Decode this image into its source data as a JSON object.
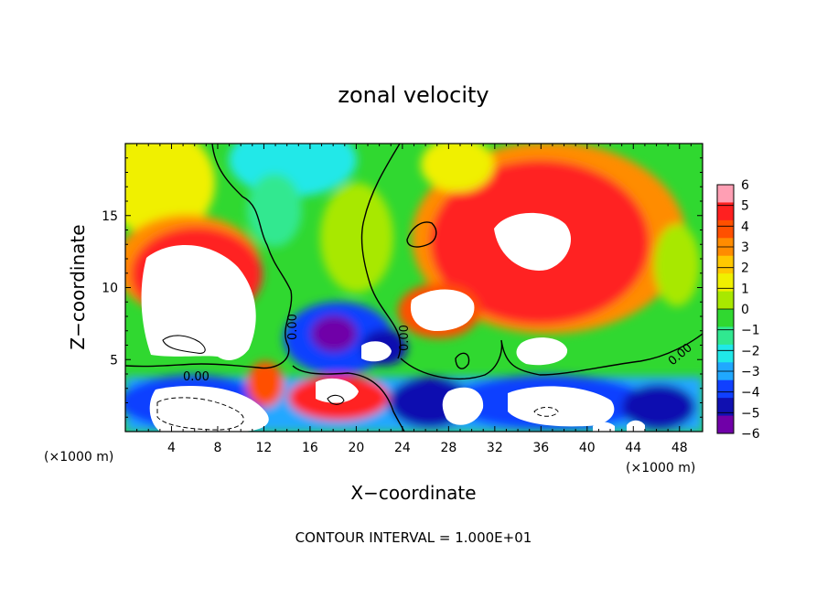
{
  "chart_data": {
    "type": "heatmap",
    "title": "zonal velocity",
    "xlabel": "X−coordinate",
    "ylabel": "Z−coordinate",
    "x_unit": "(×1000 m)",
    "z_unit": "(×1000 m)",
    "xlim": [
      0,
      50
    ],
    "ylim": [
      0,
      20
    ],
    "x_ticks": [
      "4",
      "8",
      "12",
      "16",
      "20",
      "24",
      "28",
      "32",
      "36",
      "40",
      "44",
      "48"
    ],
    "y_ticks": [
      "5",
      "10",
      "15"
    ],
    "contour_interval_label": "CONTOUR INTERVAL = 1.000E+01",
    "contour_label": "0.00",
    "colorbar": {
      "labels": [
        "6",
        "5",
        "4",
        "3",
        "2",
        "1",
        "0",
        "−1",
        "−2",
        "−3",
        "−4",
        "−5",
        "−6"
      ],
      "range": [
        -6,
        6
      ]
    },
    "colors": {
      "white": "#ffffff",
      "pink": "#ff9fb4",
      "red": "#ff2020",
      "orange_red": "#ff5000",
      "orange": "#ff8c00",
      "yellow_orange": "#ffc800",
      "yellow": "#f0f000",
      "yellow_green": "#a8e800",
      "green": "#30d830",
      "light_green": "#30e890",
      "cyan": "#20e8e8",
      "light_blue": "#20a8ff",
      "blue": "#1040ff",
      "dark_blue": "#1010b0",
      "purple": "#7000a8"
    }
  }
}
